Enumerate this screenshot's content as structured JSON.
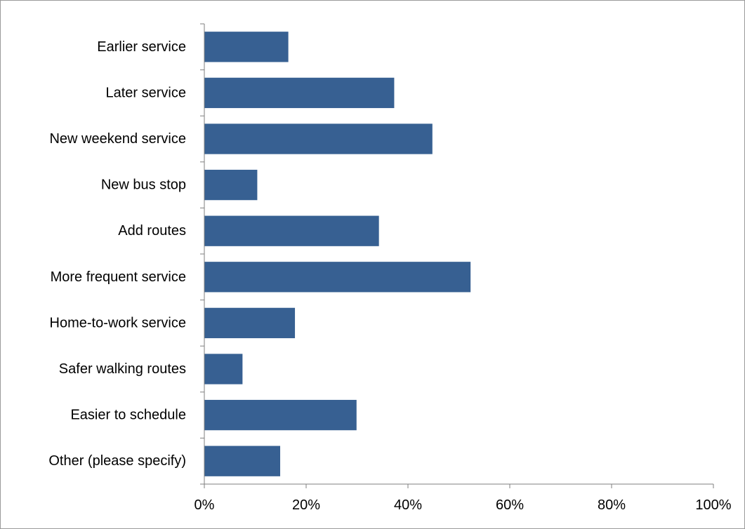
{
  "chart_data": {
    "type": "bar",
    "orientation": "horizontal",
    "title": "",
    "xlabel": "",
    "ylabel": "",
    "categories": [
      "Earlier service",
      "Later service",
      "New weekend service",
      "New bus stop",
      "Add routes",
      "More frequent service",
      "Home-to-work service",
      "Safer walking routes",
      "Easier to schedule",
      "Other (please specify)"
    ],
    "values": [
      16.5,
      37.3,
      44.8,
      10.4,
      34.3,
      52.3,
      17.8,
      7.5,
      29.9,
      14.9
    ],
    "xlim": [
      0,
      100
    ],
    "x_ticks": [
      "0%",
      "20%",
      "40%",
      "60%",
      "80%",
      "100%"
    ],
    "grid": false,
    "legend": "none",
    "bar_color": "#376092"
  }
}
